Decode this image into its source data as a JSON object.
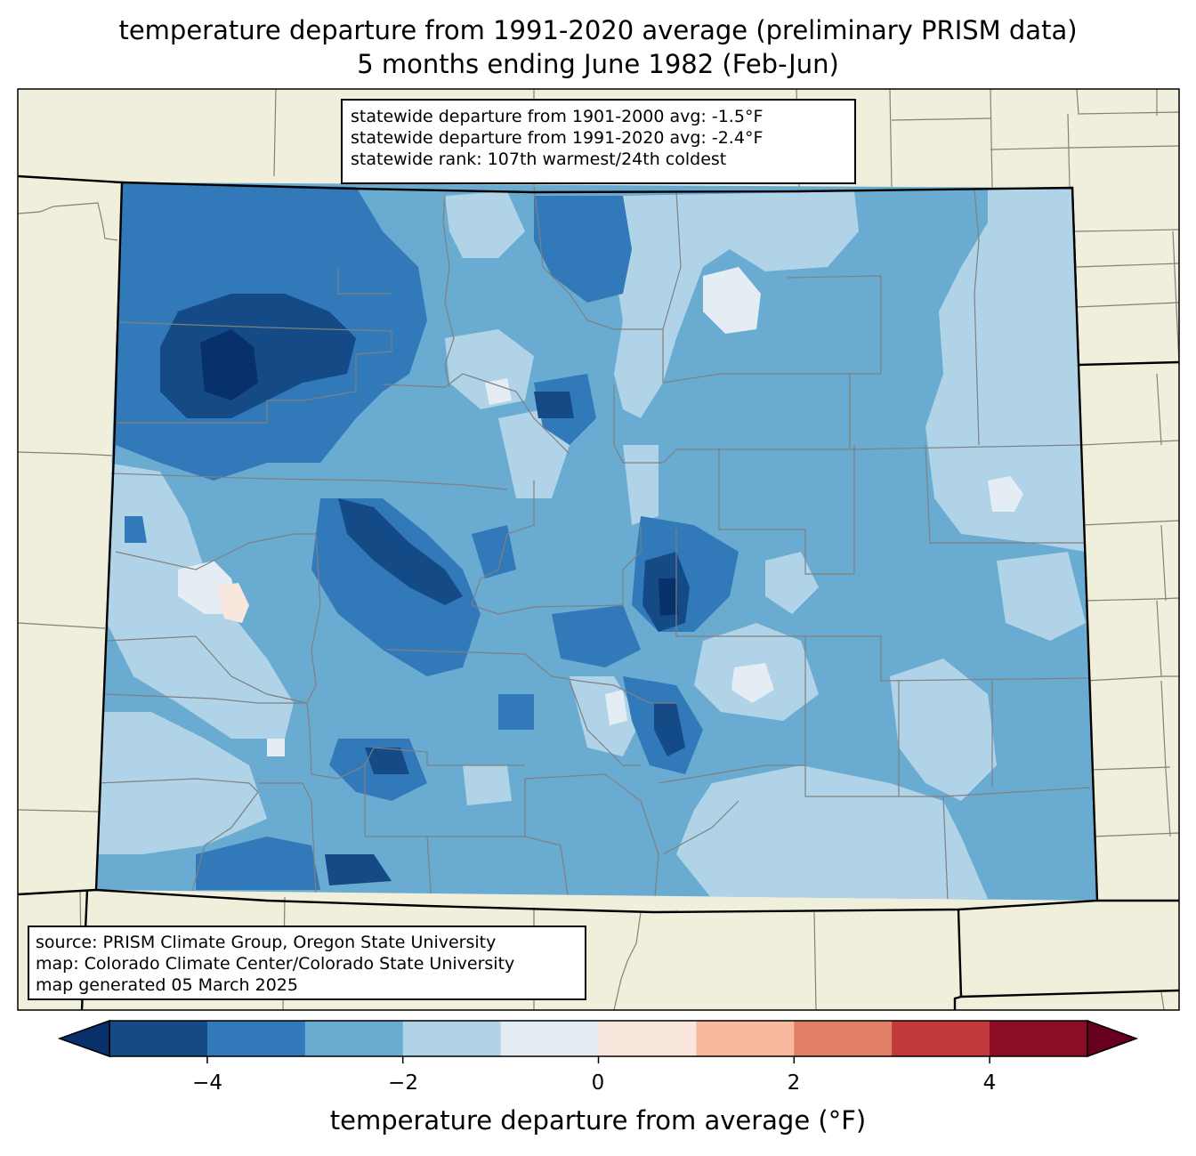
{
  "title": {
    "line1": "temperature departure from 1991-2020 average (preliminary PRISM data)",
    "line2": "5 months ending June 1982 (Feb-Jun)"
  },
  "stats_box": {
    "line1": "statewide departure from 1901-2000 avg: -1.5°F",
    "line2": "statewide departure from 1991-2020 avg: -2.4°F",
    "line3": "statewide rank: 107th warmest/24th coldest"
  },
  "source_box": {
    "line1": "source: PRISM Climate Group, Oregon State University",
    "line2": "map: Colorado Climate Center/Colorado State University",
    "line3": "map generated 05 March 2025"
  },
  "colorbar": {
    "label": "temperature departure from average (°F)",
    "ticks": [
      "−4",
      "−2",
      "0",
      "2",
      "4"
    ],
    "tick_values": [
      -4,
      -2,
      0,
      2,
      4
    ],
    "range": [
      -5,
      5
    ],
    "bins": [
      {
        "from": -5,
        "to": -4,
        "color": "#144a86"
      },
      {
        "from": -4,
        "to": -3,
        "color": "#3179b8"
      },
      {
        "from": -3,
        "to": -2,
        "color": "#6aabd2"
      },
      {
        "from": -2,
        "to": -1,
        "color": "#b0d3e7"
      },
      {
        "from": -1,
        "to": 0,
        "color": "#e4edf4"
      },
      {
        "from": 0,
        "to": 1,
        "color": "#f9e6dc"
      },
      {
        "from": 1,
        "to": 2,
        "color": "#f6b99d"
      },
      {
        "from": 2,
        "to": 3,
        "color": "#e17f65"
      },
      {
        "from": 3,
        "to": 4,
        "color": "#c1393a"
      },
      {
        "from": 4,
        "to": 5,
        "color": "#8a0c25"
      }
    ],
    "under_color": "#08306b",
    "over_color": "#67001f"
  },
  "colors": {
    "land": "#f0efdc",
    "state_border": "#000000",
    "county_border": "#808080"
  }
}
